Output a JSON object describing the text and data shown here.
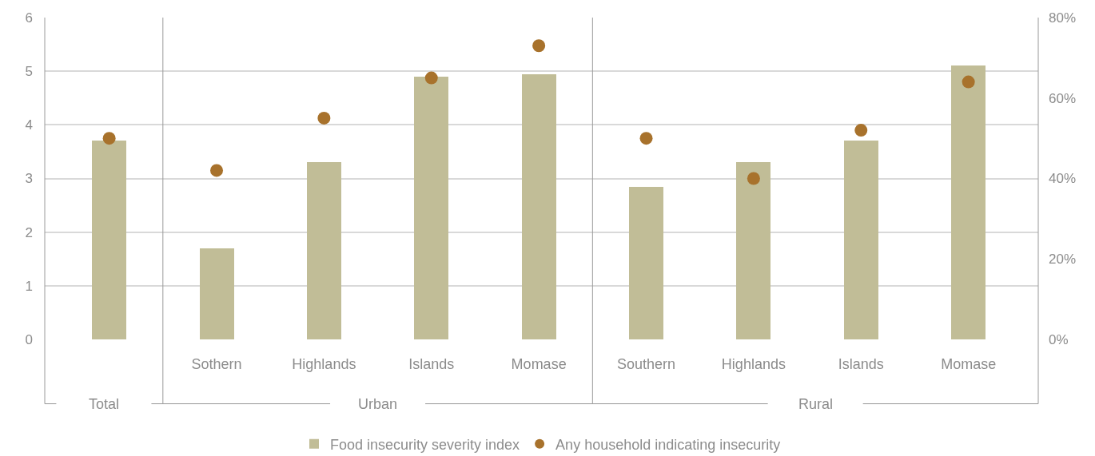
{
  "chart_data": {
    "type": "bar",
    "categories": [
      null,
      "Sothern",
      "Highlands",
      "Islands",
      "Momase",
      "Southern",
      "Highlands",
      "Islands",
      "Momase"
    ],
    "series": [
      {
        "name": "Food insecurity severity index",
        "color": "#c1bd97",
        "values": [
          3.7,
          1.7,
          3.3,
          4.9,
          4.95,
          2.85,
          3.3,
          3.7,
          5.1
        ]
      },
      {
        "name": "Any household indicating insecurity",
        "type": "scatter",
        "axis": "y2",
        "color": "#a8722c",
        "values": [
          50,
          42,
          55,
          65,
          73,
          50,
          40,
          52,
          64
        ]
      }
    ],
    "ylim": [
      0,
      6
    ],
    "yticks": [
      0,
      1,
      2,
      3,
      4,
      5,
      6
    ],
    "y2lim": [
      0,
      80
    ],
    "y2ticks": [
      {
        "value": 0,
        "label": "0%"
      },
      {
        "value": 20,
        "label": "20%"
      },
      {
        "value": 40,
        "label": "40%"
      },
      {
        "value": 60,
        "label": "60%"
      },
      {
        "value": 80,
        "label": "80%"
      }
    ],
    "annotations": [
      "Total",
      "Urban",
      "Rural"
    ],
    "grid": "y",
    "legend": "bottom",
    "marker": "circle"
  }
}
